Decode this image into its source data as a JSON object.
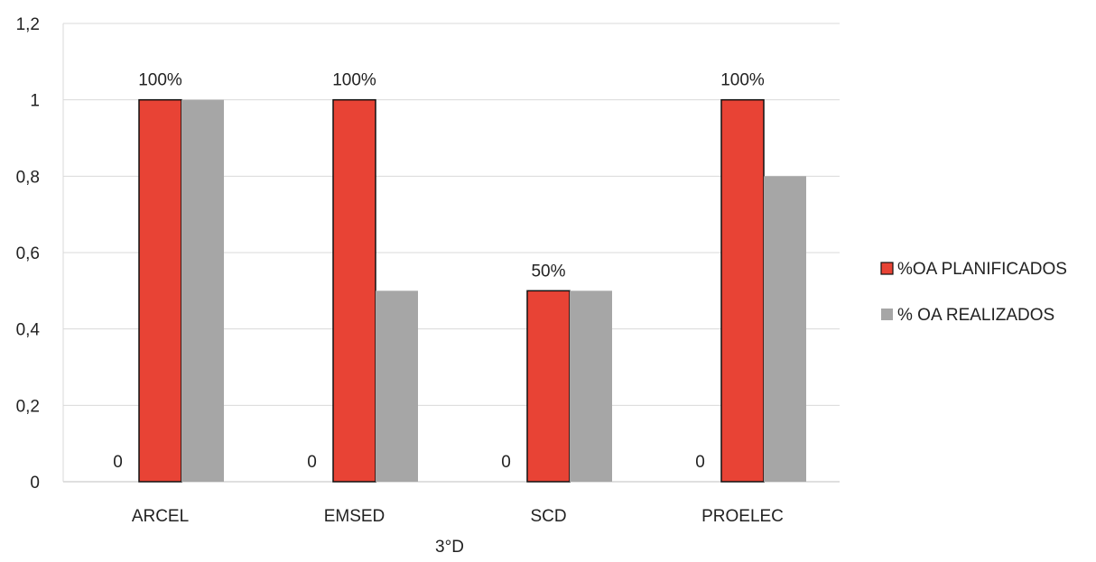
{
  "chart_data": {
    "type": "bar",
    "xlabel": "3°D",
    "ylabel": "",
    "ylim": [
      0,
      1.2
    ],
    "y_ticks": [
      "0",
      "0,2",
      "0,4",
      "0,6",
      "0,8",
      "1",
      "1,2"
    ],
    "categories": [
      "ARCEL",
      "EMSED",
      "SCD",
      "PROELEC"
    ],
    "series": [
      {
        "name": "",
        "values": [
          0,
          0,
          0,
          0
        ],
        "data_labels": [
          "0",
          "0",
          "0",
          "0"
        ],
        "color": "#ffffff"
      },
      {
        "name": "%OA PLANIFICADOS",
        "values": [
          1,
          1,
          0.5,
          1
        ],
        "data_labels": [
          "100%",
          "100%",
          "50%",
          "100%"
        ],
        "color": "#e84335"
      },
      {
        "name": "% OA REALIZADOS",
        "values": [
          1,
          0.5,
          0.5,
          0.8
        ],
        "data_labels": [
          "",
          "",
          "",
          ""
        ],
        "color": "#a6a6a6"
      }
    ],
    "grid": true,
    "legend_position": "right"
  }
}
